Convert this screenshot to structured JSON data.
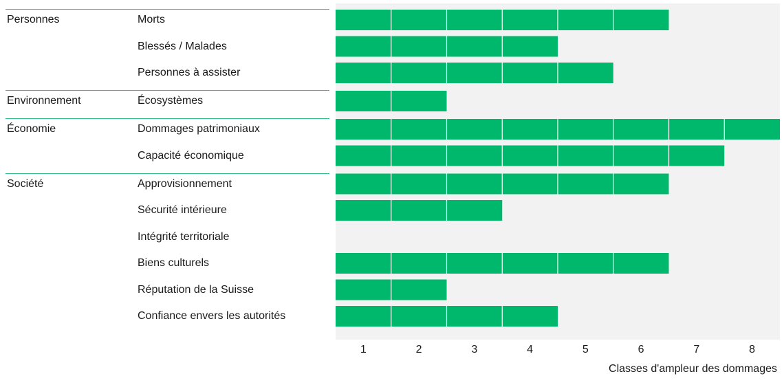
{
  "chart_data": {
    "type": "bar",
    "orientation": "horizontal",
    "xlabel": "Classes d'ampleur des dommages",
    "xlim": [
      0.5,
      8.5
    ],
    "x_ticks": [
      "1",
      "2",
      "3",
      "4",
      "5",
      "6",
      "7",
      "8"
    ],
    "bar_color": "#00b86b",
    "plot_background": "#f2f2f2",
    "separator_color": "#2bbf86",
    "groups": [
      {
        "name": "Personnes",
        "items": [
          {
            "label": "Morts",
            "value": 6
          },
          {
            "label": "Blessés / Malades",
            "value": 4
          },
          {
            "label": "Personnes à assister",
            "value": 5
          }
        ]
      },
      {
        "name": "Environnement",
        "items": [
          {
            "label": "Écosystèmes",
            "value": 2
          }
        ]
      },
      {
        "name": "Économie",
        "items": [
          {
            "label": "Dommages patrimoniaux",
            "value": 8
          },
          {
            "label": "Capacité économique",
            "value": 7
          }
        ]
      },
      {
        "name": "Société",
        "items": [
          {
            "label": "Approvisionnement",
            "value": 6
          },
          {
            "label": "Sécurité intérieure",
            "value": 3
          },
          {
            "label": "Intégrité territoriale",
            "value": 0
          },
          {
            "label": "Biens culturels",
            "value": 6
          },
          {
            "label": "Réputation de la Suisse",
            "value": 2
          },
          {
            "label": "Confiance envers les autorités",
            "value": 4
          }
        ]
      }
    ]
  }
}
